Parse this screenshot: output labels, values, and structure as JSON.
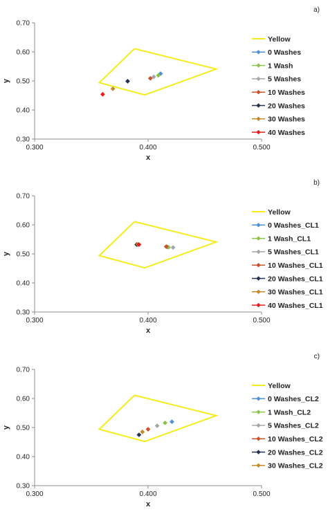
{
  "chart_data": [
    {
      "type": "scatter",
      "panel_label": "a)",
      "xlabel": "x",
      "ylabel": "y",
      "xlim": [
        0.3,
        0.5
      ],
      "ylim": [
        0.3,
        0.7
      ],
      "xticks": [
        "0.300",
        "0.400",
        "0.500"
      ],
      "yticks": [
        "0.30",
        "0.40",
        "0.50",
        "0.60",
        "0.70"
      ],
      "grid": false,
      "legend_position": "right",
      "region": {
        "name": "Yellow",
        "color": "#f5ec1c",
        "points": [
          [
            0.388,
            0.611
          ],
          [
            0.46,
            0.541
          ],
          [
            0.397,
            0.452
          ],
          [
            0.357,
            0.494
          ],
          [
            0.388,
            0.611
          ]
        ]
      },
      "series": [
        {
          "name": "0 Washes",
          "color": "#4f90d6",
          "points": [
            [
              0.411,
              0.525
            ]
          ]
        },
        {
          "name": "1 Wash",
          "color": "#8bc34a",
          "points": [
            [
              0.409,
              0.519
            ]
          ]
        },
        {
          "name": "5 Washes",
          "color": "#a6a6a6",
          "points": [
            [
              0.405,
              0.514
            ]
          ]
        },
        {
          "name": "10 Washes",
          "color": "#c8502a",
          "points": [
            [
              0.402,
              0.509
            ]
          ]
        },
        {
          "name": "20 Washes",
          "color": "#23334f",
          "points": [
            [
              0.382,
              0.499
            ]
          ]
        },
        {
          "name": "30 Washes",
          "color": "#c48a2a",
          "points": [
            [
              0.369,
              0.473
            ]
          ]
        },
        {
          "name": "40 Washes",
          "color": "#e21f1f",
          "points": [
            [
              0.36,
              0.454
            ]
          ]
        }
      ]
    },
    {
      "type": "scatter",
      "panel_label": "b)",
      "xlabel": "x",
      "ylabel": "y",
      "xlim": [
        0.3,
        0.5
      ],
      "ylim": [
        0.3,
        0.7
      ],
      "xticks": [
        "0.300",
        "0.400",
        "0.500"
      ],
      "yticks": [
        "0.30",
        "0.40",
        "0.50",
        "0.60",
        "0.70"
      ],
      "grid": false,
      "legend_position": "right",
      "region": {
        "name": "Yellow",
        "color": "#f5ec1c",
        "points": [
          [
            0.388,
            0.611
          ],
          [
            0.46,
            0.541
          ],
          [
            0.397,
            0.452
          ],
          [
            0.357,
            0.494
          ],
          [
            0.388,
            0.611
          ]
        ]
      },
      "series": [
        {
          "name": "0 Washes_CL1",
          "color": "#4f90d6",
          "points": [
            [
              0.417,
              0.524
            ]
          ]
        },
        {
          "name": "1 Wash_CL1",
          "color": "#8bc34a",
          "points": [
            [
              0.418,
              0.523
            ]
          ]
        },
        {
          "name": "5 Washes_CL1",
          "color": "#a6a6a6",
          "points": [
            [
              0.422,
              0.522
            ]
          ]
        },
        {
          "name": "10 Washes_CL1",
          "color": "#c8502a",
          "points": [
            [
              0.416,
              0.525
            ]
          ]
        },
        {
          "name": "20 Washes_CL1",
          "color": "#23334f",
          "points": [
            [
              0.39,
              0.532
            ]
          ]
        },
        {
          "name": "30 Washes_CL1",
          "color": "#c48a2a",
          "points": [
            [
              0.391,
              0.533
            ]
          ]
        },
        {
          "name": "40 Washes_CL1",
          "color": "#e21f1f",
          "points": [
            [
              0.392,
              0.532
            ]
          ]
        }
      ]
    },
    {
      "type": "scatter",
      "panel_label": "c)",
      "xlabel": "x",
      "ylabel": "y",
      "xlim": [
        0.3,
        0.5
      ],
      "ylim": [
        0.3,
        0.7
      ],
      "xticks": [
        "0.300",
        "0.400",
        "0.500"
      ],
      "yticks": [
        "0.30",
        "0.40",
        "0.50",
        "0.60",
        "0.70"
      ],
      "grid": false,
      "legend_position": "right",
      "region": {
        "name": "Yellow",
        "color": "#f5ec1c",
        "points": [
          [
            0.388,
            0.611
          ],
          [
            0.46,
            0.541
          ],
          [
            0.397,
            0.452
          ],
          [
            0.357,
            0.494
          ],
          [
            0.388,
            0.611
          ]
        ]
      },
      "series": [
        {
          "name": "0 Washes_CL2",
          "color": "#4f90d6",
          "points": [
            [
              0.421,
              0.52
            ]
          ]
        },
        {
          "name": "1 Wash_CL2",
          "color": "#8bc34a",
          "points": [
            [
              0.415,
              0.516
            ]
          ]
        },
        {
          "name": "5 Washes_CL2",
          "color": "#a6a6a6",
          "points": [
            [
              0.408,
              0.506
            ]
          ]
        },
        {
          "name": "10 Washes_CL2",
          "color": "#c8502a",
          "points": [
            [
              0.4,
              0.494
            ]
          ]
        },
        {
          "name": "20 Washes_CL2",
          "color": "#23334f",
          "points": [
            [
              0.392,
              0.475
            ]
          ]
        },
        {
          "name": "30 Washes_CL2",
          "color": "#c48a2a",
          "points": [
            [
              0.395,
              0.485
            ]
          ]
        }
      ]
    }
  ]
}
